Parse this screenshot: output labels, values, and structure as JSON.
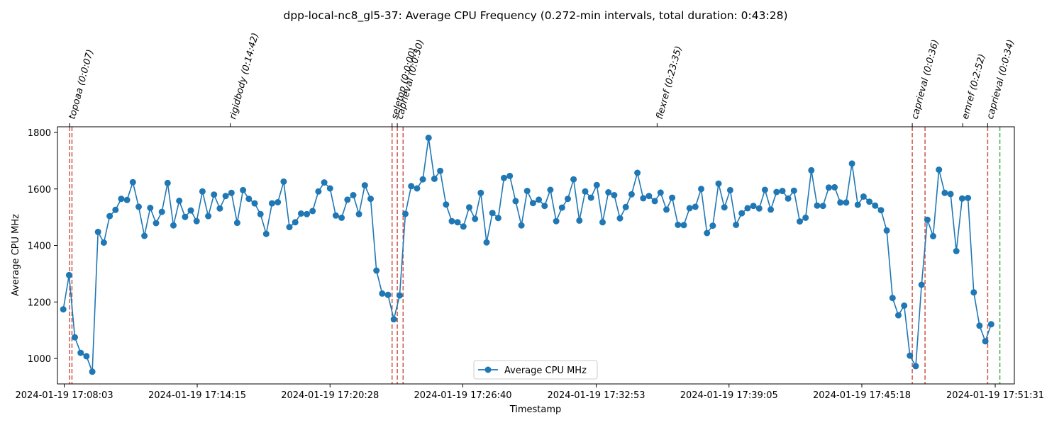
{
  "chart_data": {
    "type": "line",
    "title": "dpp-local-nc8_gl5-37: Average CPU Frequency (0.272-min intervals, total duration: 0:43:28)",
    "xlabel": "Timestamp",
    "ylabel": "Average CPU MHz",
    "ylim": [
      910,
      1820
    ],
    "y_ticks": [
      1000,
      1200,
      1400,
      1600,
      1800
    ],
    "x_ticks": [
      "2024-01-19 17:08:03",
      "2024-01-19 17:14:15",
      "2024-01-19 17:20:28",
      "2024-01-19 17:26:40",
      "2024-01-19 17:32:53",
      "2024-01-19 17:39:05",
      "2024-01-19 17:45:18",
      "2024-01-19 17:51:31"
    ],
    "x_tick_index": [
      0.17,
      23.1,
      46.0,
      68.9,
      91.9,
      114.8,
      137.7,
      160.7
    ],
    "xlim_index": [
      -1.0,
      164.0
    ],
    "grid": false,
    "legend_position": "lower center",
    "colors": {
      "series": "#1f77b4",
      "marker_red": "#c0392b",
      "marker_green": "#2ca02c"
    },
    "series": [
      {
        "name": "Average CPU MHz",
        "values": [
          1174,
          1295,
          1075,
          1020,
          1008,
          953,
          1448,
          1410,
          1504,
          1526,
          1565,
          1561,
          1624,
          1537,
          1434,
          1533,
          1479,
          1519,
          1621,
          1471,
          1558,
          1501,
          1524,
          1486,
          1591,
          1504,
          1580,
          1531,
          1575,
          1586,
          1480,
          1596,
          1565,
          1549,
          1511,
          1441,
          1549,
          1553,
          1626,
          1465,
          1482,
          1513,
          1511,
          1522,
          1591,
          1623,
          1602,
          1506,
          1498,
          1562,
          1578,
          1511,
          1613,
          1565,
          1311,
          1230,
          1225,
          1139,
          1223,
          1512,
          1610,
          1602,
          1634,
          1781,
          1636,
          1664,
          1545,
          1486,
          1482,
          1467,
          1535,
          1494,
          1586,
          1411,
          1515,
          1497,
          1639,
          1646,
          1557,
          1471,
          1593,
          1550,
          1562,
          1540,
          1597,
          1486,
          1534,
          1565,
          1634,
          1488,
          1591,
          1569,
          1614,
          1482,
          1588,
          1578,
          1496,
          1536,
          1581,
          1657,
          1567,
          1575,
          1557,
          1587,
          1527,
          1569,
          1473,
          1472,
          1532,
          1537,
          1600,
          1444,
          1470,
          1619,
          1535,
          1596,
          1473,
          1514,
          1532,
          1540,
          1531,
          1597,
          1527,
          1589,
          1593,
          1566,
          1594,
          1485,
          1498,
          1666,
          1541,
          1540,
          1605,
          1606,
          1552,
          1552,
          1690,
          1544,
          1573,
          1555,
          1541,
          1525,
          1453,
          1214,
          1153,
          1187,
          1010,
          973,
          1261,
          1491,
          1433,
          1668,
          1586,
          1582,
          1380,
          1566,
          1568,
          1234,
          1116,
          1061,
          1121
        ]
      }
    ],
    "events": [
      {
        "label": "topoaa (0:0:07)",
        "start_index": 1.1,
        "end_index": 1.5,
        "color": "red"
      },
      {
        "label": "rigidbody (0:14:42)",
        "start_index": 28.8,
        "end_index": 28.8,
        "color": "none"
      },
      {
        "label": "seletop (0:0:00)",
        "start_index": 56.7,
        "end_index": 56.7,
        "color": "red"
      },
      {
        "label": "caprieval (0:0:30)",
        "start_index": 57.6,
        "end_index": 58.6,
        "color": "red"
      },
      {
        "label": "flexref (0:23:35)",
        "start_index": 102.4,
        "end_index": 102.4,
        "color": "none"
      },
      {
        "label": "caprieval (0:0:36)",
        "start_index": 146.4,
        "end_index": 148.6,
        "color": "red"
      },
      {
        "label": "emref (0:2:52)",
        "start_index": 155.1,
        "end_index": 155.1,
        "color": "none"
      },
      {
        "label": "caprieval (0:0:34)",
        "start_index": 159.4,
        "end_index": 161.5,
        "color": "red-green"
      }
    ]
  }
}
